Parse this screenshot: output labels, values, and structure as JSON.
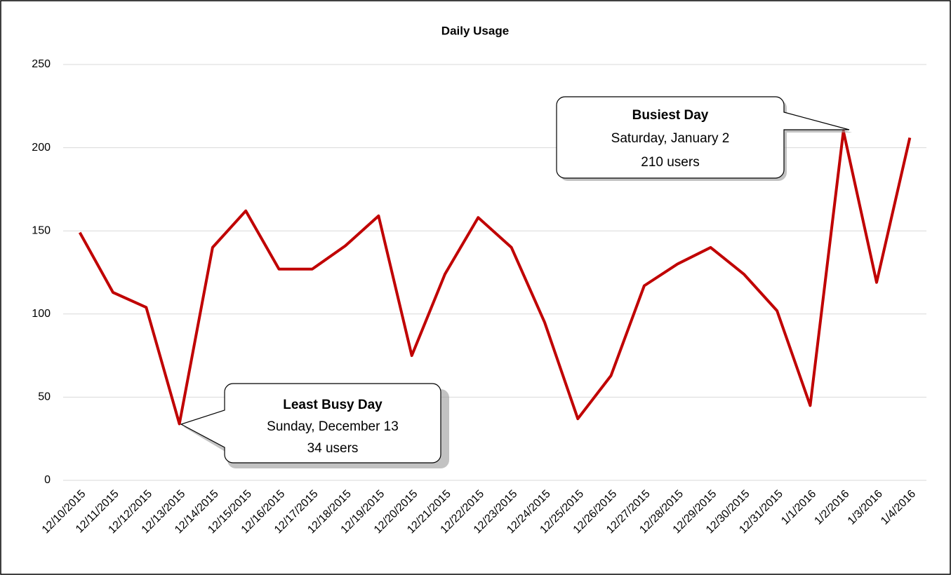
{
  "chart_data": {
    "type": "line",
    "title": "Daily Usage",
    "categories": [
      "12/10/2015",
      "12/11/2015",
      "12/12/2015",
      "12/13/2015",
      "12/14/2015",
      "12/15/2015",
      "12/16/2015",
      "12/17/2015",
      "12/18/2015",
      "12/19/2015",
      "12/20/2015",
      "12/21/2015",
      "12/22/2015",
      "12/23/2015",
      "12/24/2015",
      "12/25/2015",
      "12/26/2015",
      "12/27/2015",
      "12/28/2015",
      "12/29/2015",
      "12/30/2015",
      "12/31/2015",
      "1/1/2016",
      "1/2/2016",
      "1/3/2016",
      "1/4/2016"
    ],
    "series": [
      {
        "name": "Users",
        "color": "#c00000",
        "values": [
          149,
          113,
          104,
          34,
          140,
          162,
          127,
          127,
          141,
          159,
          75,
          124,
          158,
          140,
          95,
          37,
          63,
          117,
          130,
          140,
          124,
          102,
          45,
          210,
          119,
          206
        ]
      }
    ],
    "ylim": [
      0,
      250
    ],
    "yticks": [
      0,
      50,
      100,
      150,
      200,
      250
    ],
    "grid": true,
    "annotations": [
      {
        "title": "Least Busy Day",
        "lines": [
          "Sunday, December 13",
          "34 users"
        ]
      },
      {
        "title": "Busiest Day",
        "lines": [
          "Saturday, January 2",
          "210 users"
        ]
      }
    ]
  }
}
